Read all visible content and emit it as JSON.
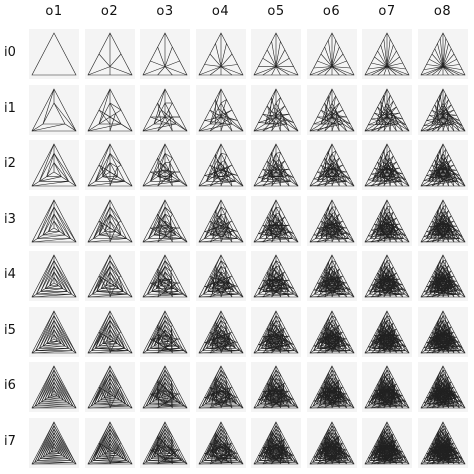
{
  "columns": [
    "o1",
    "o2",
    "o3",
    "o4",
    "o5",
    "o6",
    "o7",
    "o8"
  ],
  "rows": [
    "i0",
    "i1",
    "i2",
    "i3",
    "i4",
    "i5",
    "i6",
    "i7"
  ],
  "colors": {
    "cell_background": "#f4f4f4",
    "line": "#222222",
    "text": "#111111"
  }
}
